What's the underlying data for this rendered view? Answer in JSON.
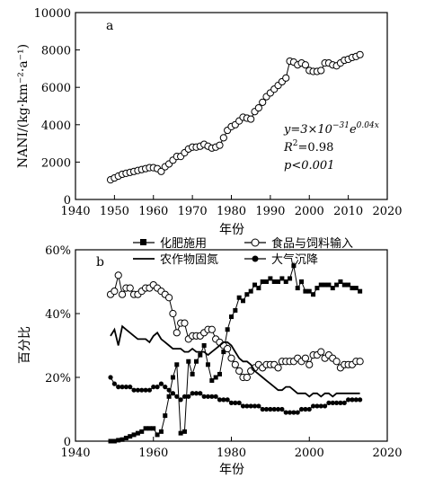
{
  "chart_data": [
    {
      "type": "scatter",
      "panel_label": "a",
      "xlabel": "年份",
      "ylabel": "NANI/(kg·km⁻²·a⁻¹)",
      "xlim": [
        1940,
        2020
      ],
      "ylim": [
        0,
        10000
      ],
      "xticks": [
        "1940",
        "1950",
        "1960",
        "1970",
        "1980",
        "1990",
        "2000",
        "2010",
        "2020"
      ],
      "yticks": [
        "0",
        "2000",
        "4000",
        "6000",
        "8000",
        "10000"
      ],
      "equation": {
        "line1_prefix": "y=3×10",
        "line1_exp1": "−31",
        "line1_mid": "e",
        "line1_exp2": "0.04x",
        "line2_prefix": "R",
        "line2_sup": "2",
        "line2_suffix": "=0.98",
        "line3": "p<0.001"
      },
      "series": [
        {
          "marker": "open-circle-line",
          "x": [
            1949,
            1950,
            1951,
            1952,
            1953,
            1954,
            1955,
            1956,
            1957,
            1958,
            1959,
            1960,
            1961,
            1962,
            1963,
            1964,
            1965,
            1966,
            1967,
            1968,
            1969,
            1970,
            1971,
            1972,
            1973,
            1974,
            1975,
            1976,
            1977,
            1978,
            1979,
            1980,
            1981,
            1982,
            1983,
            1984,
            1985,
            1986,
            1987,
            1988,
            1989,
            1990,
            1991,
            1992,
            1993,
            1994,
            1995,
            1996,
            1997,
            1998,
            1999,
            2000,
            2001,
            2002,
            2003,
            2004,
            2005,
            2006,
            2007,
            2008,
            2009,
            2010,
            2011,
            2012,
            2013
          ],
          "y": [
            1050,
            1150,
            1250,
            1350,
            1400,
            1450,
            1500,
            1550,
            1600,
            1650,
            1700,
            1700,
            1650,
            1500,
            1750,
            1900,
            2100,
            2300,
            2300,
            2500,
            2700,
            2800,
            2800,
            2850,
            2950,
            2850,
            2750,
            2800,
            2900,
            3300,
            3700,
            3900,
            4000,
            4200,
            4400,
            4350,
            4300,
            4700,
            4900,
            5200,
            5500,
            5700,
            5900,
            6100,
            6300,
            6500,
            7400,
            7350,
            7200,
            7300,
            7200,
            6900,
            6850,
            6850,
            6900,
            7300,
            7300,
            7200,
            7150,
            7300,
            7450,
            7500,
            7600,
            7650,
            7750
          ]
        }
      ]
    },
    {
      "type": "line",
      "panel_label": "b",
      "xlabel": "年份",
      "ylabel": "百分比",
      "xlim": [
        1940,
        2020
      ],
      "ylim": [
        0,
        60
      ],
      "xticks": [
        "1940",
        "1960",
        "1980",
        "2000",
        "2020"
      ],
      "yticks": [
        "0",
        "20%",
        "40%",
        "60%"
      ],
      "x": [
        1949,
        1950,
        1951,
        1952,
        1953,
        1954,
        1955,
        1956,
        1957,
        1958,
        1959,
        1960,
        1961,
        1962,
        1963,
        1964,
        1965,
        1966,
        1967,
        1968,
        1969,
        1970,
        1971,
        1972,
        1973,
        1974,
        1975,
        1976,
        1977,
        1978,
        1979,
        1980,
        1981,
        1982,
        1983,
        1984,
        1985,
        1986,
        1987,
        1988,
        1989,
        1990,
        1991,
        1992,
        1993,
        1994,
        1995,
        1996,
        1997,
        1998,
        1999,
        2000,
        2001,
        2002,
        2003,
        2004,
        2005,
        2006,
        2007,
        2008,
        2009,
        2010,
        2011,
        2012,
        2013
      ],
      "series": [
        {
          "name": "化肥施用",
          "marker": "filled-square",
          "values": [
            0,
            0,
            0.3,
            0.5,
            1,
            1.5,
            2,
            2.5,
            3,
            4,
            4,
            4,
            2,
            3,
            8,
            14,
            20,
            24,
            2.5,
            3,
            25,
            21,
            25,
            27,
            30,
            24,
            19,
            20,
            21,
            28,
            35,
            39,
            41,
            45,
            44,
            46,
            47,
            49,
            48,
            50,
            50,
            51,
            50,
            50,
            51,
            50,
            51,
            55,
            48,
            50,
            47,
            47,
            46,
            48,
            49,
            49,
            49,
            48,
            49,
            50,
            49,
            49,
            48,
            48,
            47
          ]
        },
        {
          "name": "食品与饲料输入",
          "marker": "open-circle",
          "values": [
            46,
            47,
            52,
            46,
            48,
            48,
            46,
            46,
            47,
            48,
            48,
            49,
            48,
            47,
            46,
            45,
            40,
            34,
            37,
            37,
            32,
            33,
            33,
            33,
            34,
            35,
            35,
            32,
            31,
            30,
            29,
            26,
            24,
            22,
            20,
            20,
            22,
            23,
            24,
            23,
            24,
            24,
            24,
            23,
            25,
            25,
            25,
            25,
            26,
            25,
            26,
            24,
            27,
            27,
            28,
            26,
            27,
            26,
            25,
            23,
            24,
            24,
            24,
            25,
            25
          ]
        },
        {
          "name": "农作物固氮",
          "marker": "line",
          "values": [
            33,
            35,
            30,
            36,
            35,
            34,
            33,
            32,
            32,
            32,
            31,
            33,
            34,
            32,
            31,
            30,
            29,
            29,
            29,
            28,
            28,
            29,
            28,
            28,
            28,
            27,
            28,
            29,
            30,
            31,
            31,
            30,
            28,
            26,
            25,
            25,
            24,
            22,
            21,
            20,
            19,
            18,
            17,
            16,
            16,
            17,
            17,
            16,
            15,
            15,
            15,
            14,
            15,
            15,
            14,
            15,
            15,
            14,
            15,
            15,
            15,
            15,
            15,
            15,
            15
          ]
        },
        {
          "name": "大气沉降",
          "marker": "filled-circle",
          "values": [
            20,
            18,
            17,
            17,
            17,
            17,
            16,
            16,
            16,
            16,
            16,
            17,
            17,
            18,
            17,
            16,
            15,
            14,
            13,
            14,
            14,
            15,
            15,
            15,
            14,
            14,
            14,
            14,
            13,
            13,
            13,
            12,
            12,
            12,
            11,
            11,
            11,
            11,
            11,
            10,
            10,
            10,
            10,
            10,
            10,
            9,
            9,
            9,
            9,
            10,
            10,
            10,
            11,
            11,
            11,
            11,
            12,
            12,
            12,
            12,
            12,
            13,
            13,
            13,
            13
          ]
        }
      ]
    }
  ]
}
